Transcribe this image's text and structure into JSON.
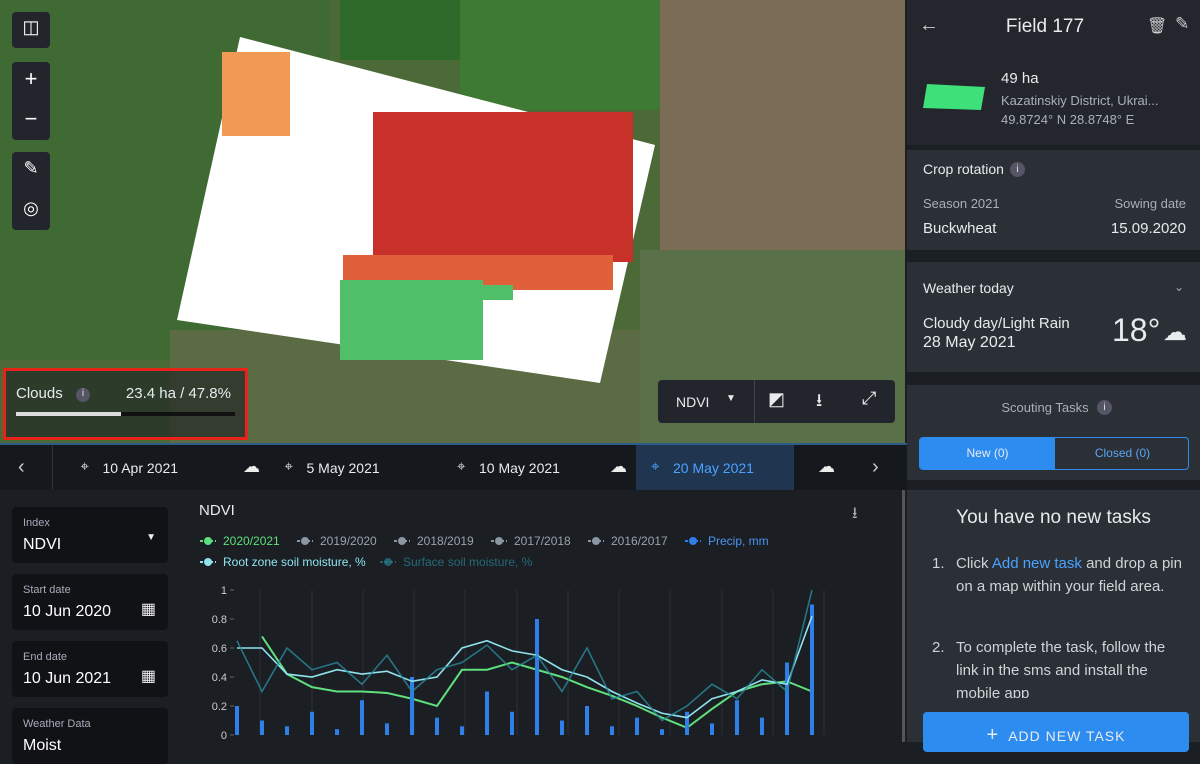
{
  "map": {
    "clouds": {
      "label": "Clouds",
      "value": "23.4 ha / 47.8%"
    },
    "layer": "NDVI"
  },
  "timeline": {
    "dates": [
      "10 Apr 2021",
      "5 May 2021",
      "10 May 2021",
      "20 May 2021"
    ],
    "selected": 3
  },
  "filters": [
    {
      "label": "Index",
      "value": "NDVI"
    },
    {
      "label": "Start date",
      "value": "10 Jun 2020"
    },
    {
      "label": "End date",
      "value": "10 Jun 2021"
    },
    {
      "label": "Weather Data",
      "value": "Moist"
    }
  ],
  "chart_data": {
    "type": "line",
    "title": "NDVI",
    "ylim": [
      0,
      1
    ],
    "yticks": [
      0,
      0.2,
      0.4,
      0.6,
      0.8,
      1
    ],
    "y2lim": [
      0,
      50
    ],
    "series": [
      {
        "name": "2020/2021",
        "color": "#5fe07c",
        "values": [
          null,
          0.68,
          0.42,
          0.33,
          0.3,
          0.3,
          0.29,
          0.25,
          0.2,
          0.45,
          0.45,
          0.5,
          0.45,
          0.4,
          0.33,
          0.27,
          0.2,
          0.12,
          0.05,
          0.18,
          0.3,
          0.35,
          0.37,
          0.3
        ]
      },
      {
        "name": "2019/2020",
        "color": "#8a96a3",
        "hidden": true
      },
      {
        "name": "2018/2019",
        "color": "#8a96a3",
        "hidden": true
      },
      {
        "name": "2017/2018",
        "color": "#8a96a3",
        "hidden": true
      },
      {
        "name": "2016/2017",
        "color": "#8a96a3",
        "hidden": true
      },
      {
        "name": "Precip, mm",
        "color": "#2f7fe8",
        "axis": "y2",
        "kind": "bar",
        "values": [
          10,
          5,
          3,
          8,
          2,
          12,
          4,
          20,
          6,
          3,
          15,
          8,
          40,
          5,
          10,
          3,
          6,
          2,
          8,
          4,
          12,
          6,
          25,
          45
        ]
      },
      {
        "name": "Root zone soil moisture, %",
        "color": "#8fe3ef",
        "values": [
          0.6,
          0.6,
          0.42,
          0.4,
          0.45,
          0.42,
          0.44,
          0.37,
          0.4,
          0.6,
          0.65,
          0.58,
          0.55,
          0.45,
          0.4,
          0.3,
          0.22,
          0.15,
          0.12,
          0.25,
          0.3,
          0.38,
          0.35,
          0.82
        ]
      },
      {
        "name": "Surface soil moisture, %",
        "color": "#2b8a9c",
        "values": [
          0.65,
          0.3,
          0.6,
          0.45,
          0.5,
          0.35,
          0.55,
          0.3,
          0.45,
          0.5,
          0.62,
          0.45,
          0.55,
          0.3,
          0.6,
          0.25,
          0.3,
          0.1,
          0.2,
          0.35,
          0.25,
          0.45,
          0.3,
          1
        ]
      }
    ]
  },
  "field": {
    "title": "Field 177",
    "area": "49 ha",
    "district": "Kazatinskiy District, Ukrai...",
    "coords": "49.8724° N 28.8748° E",
    "crop_rotation": {
      "title": "Crop rotation",
      "season_label": "Season 2021",
      "sowing_label": "Sowing date",
      "crop": "Buckwheat",
      "sowing_date": "15.09.2020"
    },
    "weather": {
      "title": "Weather today",
      "summary": "Cloudy day/Light Rain",
      "date": "28 May 2021",
      "temp": "18°"
    },
    "scouting": {
      "title": "Scouting Tasks",
      "tabs": [
        "New (0)",
        "Closed (0)"
      ],
      "empty_title": "You have no new tasks",
      "steps": [
        {
          "before": "Click ",
          "link": "Add new task",
          "after": " and drop a pin on a map within your field area."
        },
        {
          "before": "To complete the task, follow the link in the sms and install the mobile app"
        }
      ],
      "button": "ADD NEW TASK"
    }
  }
}
